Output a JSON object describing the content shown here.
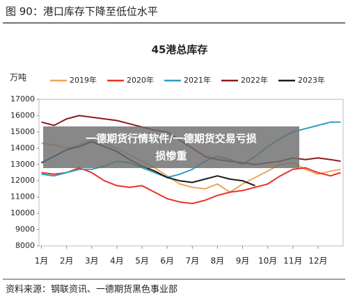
{
  "figure_title": "图 90：港口库存下降至低位水平",
  "source": "资料来源：钢联资讯、一德期货黑色事业部",
  "overlay": [
    "一德期货行情软件/一德期货交易亏损",
    "损惨重"
  ],
  "chart_data": {
    "type": "line",
    "title": "45港总库存",
    "y_label": "万吨",
    "x": [
      1,
      1.5,
      2,
      2.5,
      3,
      3.5,
      4,
      4.5,
      5,
      5.5,
      6,
      6.5,
      7,
      7.5,
      8,
      8.5,
      9,
      9.5,
      10,
      10.5,
      11,
      11.5,
      12,
      12.5,
      12.9
    ],
    "xlim": [
      0.9,
      13
    ],
    "xticks": [
      {
        "value": 1,
        "label": "1月"
      },
      {
        "value": 2,
        "label": "2月"
      },
      {
        "value": 3,
        "label": "3月"
      },
      {
        "value": 4,
        "label": "4月"
      },
      {
        "value": 5,
        "label": "5月"
      },
      {
        "value": 6,
        "label": "6月"
      },
      {
        "value": 7,
        "label": "7月"
      },
      {
        "value": 8,
        "label": "8月"
      },
      {
        "value": 9,
        "label": "9月"
      },
      {
        "value": 10,
        "label": "10月"
      },
      {
        "value": 11,
        "label": "11月"
      },
      {
        "value": 12,
        "label": "12月"
      }
    ],
    "ylim": [
      8000,
      17000
    ],
    "yticks": [
      8000,
      9000,
      10000,
      11000,
      12000,
      13000,
      14000,
      15000,
      16000,
      17000
    ],
    "series": [
      {
        "name": "2019年",
        "color": "#f0a35e",
        "values": [
          14300,
          14200,
          14000,
          14200,
          14500,
          14300,
          14000,
          13600,
          13200,
          12800,
          12300,
          11800,
          11600,
          11500,
          11800,
          11300,
          11800,
          12200,
          12600,
          13000,
          13100,
          12700,
          12400,
          12600,
          12700
        ]
      },
      {
        "name": "2020年",
        "color": "#e8312a",
        "values": [
          12500,
          12400,
          12500,
          12800,
          12500,
          12000,
          11700,
          11600,
          11700,
          11300,
          10900,
          10700,
          10600,
          10800,
          11100,
          11300,
          11400,
          11600,
          11800,
          12300,
          12700,
          12800,
          12500,
          12300,
          12500
        ]
      },
      {
        "name": "2021年",
        "color": "#2e9cc0",
        "values": [
          12400,
          12300,
          12500,
          12700,
          12700,
          12900,
          13200,
          13100,
          12800,
          12500,
          12200,
          12400,
          12700,
          13200,
          13500,
          13300,
          13000,
          13500,
          14100,
          14600,
          15000,
          15200,
          15400,
          15600,
          15600
        ]
      },
      {
        "name": "2022年",
        "color": "#8b1a1a",
        "values": [
          15600,
          15400,
          15800,
          16000,
          15900,
          15800,
          15700,
          15500,
          15300,
          15100,
          15000,
          14500,
          14000,
          13500,
          13300,
          13200,
          13100,
          13000,
          13100,
          13200,
          13400,
          13300,
          13400,
          13300,
          13200
        ]
      },
      {
        "name": "2023年",
        "color": "#1a1a1a",
        "values": [
          13100,
          13500,
          13900,
          14100,
          14400,
          14100,
          13800,
          13300,
          12900,
          12600,
          12200,
          12000,
          11900,
          12100,
          12300,
          12100,
          12000,
          11700,
          null,
          null,
          null,
          null,
          null,
          null,
          null
        ]
      }
    ]
  }
}
